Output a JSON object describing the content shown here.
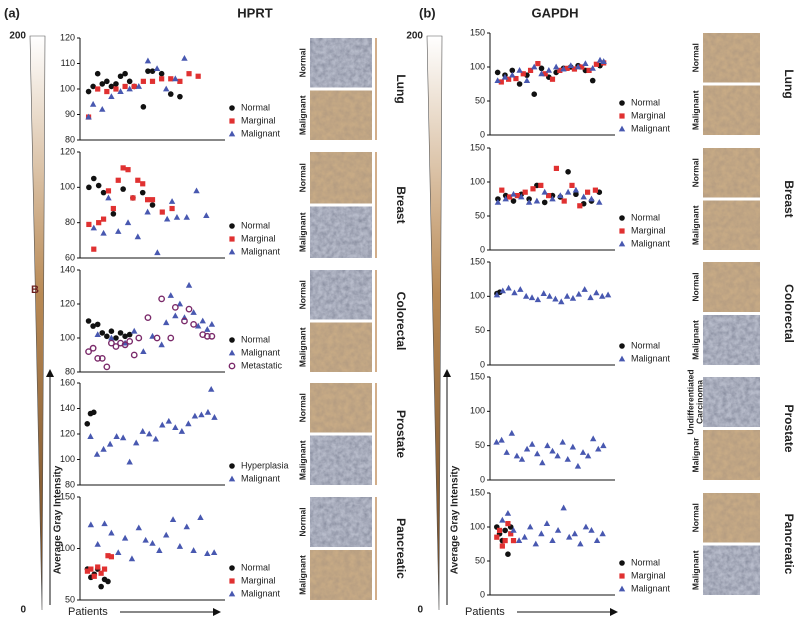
{
  "panels": [
    {
      "label": "(a)",
      "title": "HPRT",
      "scale_ticks": [
        0,
        200
      ],
      "y_label": "Average Gray Intensity",
      "x_label": "Patients",
      "mark": "B"
    },
    {
      "label": "(b)",
      "title": "GAPDH",
      "scale_ticks": [
        0,
        200
      ],
      "y_label": "Average Gray Intensity",
      "x_label": "Patients"
    }
  ],
  "chart_data": [
    {
      "type": "scatter",
      "tissue": "Lung",
      "image_labels": [
        "Normal",
        "Malignant"
      ],
      "xlim": [
        0,
        30
      ],
      "ylim": [
        80,
        120
      ],
      "yticks": [
        80,
        90,
        100,
        110,
        120
      ],
      "legend": true,
      "series": [
        {
          "name": "Normal",
          "color": "#111111",
          "marker": "circle",
          "x": [
            1,
            2,
            3,
            4,
            5,
            6,
            7,
            8,
            9,
            10,
            11,
            13,
            14,
            15,
            17,
            19,
            21
          ],
          "values": [
            99,
            101,
            106,
            102,
            103,
            101,
            102,
            105,
            106,
            103,
            101,
            93,
            107,
            107,
            106,
            98,
            97
          ]
        },
        {
          "name": "Marginal",
          "color": "#e03131",
          "marker": "square",
          "x": [
            1,
            3,
            5,
            7,
            9,
            11,
            13,
            15,
            17,
            19,
            21,
            23,
            25
          ],
          "values": [
            89,
            100,
            99,
            100,
            101,
            101,
            103,
            103,
            104,
            104,
            103,
            106,
            105
          ]
        },
        {
          "name": "Malignant",
          "color": "#4858b0",
          "marker": "triangle",
          "x": [
            1,
            2,
            4,
            6,
            8,
            10,
            12,
            14,
            16,
            18,
            20,
            22
          ],
          "values": [
            89,
            94,
            92,
            97,
            99,
            100,
            101,
            111,
            108,
            100,
            104,
            112
          ]
        }
      ]
    },
    {
      "type": "scatter",
      "tissue": "Breast",
      "image_labels": [
        "Normal",
        "Malignant"
      ],
      "xlim": [
        0,
        28
      ],
      "ylim": [
        60,
        120
      ],
      "yticks": [
        60,
        80,
        100,
        120
      ],
      "legend": true,
      "series": [
        {
          "name": "Normal",
          "color": "#111111",
          "marker": "circle",
          "x": [
            1,
            2,
            3,
            4,
            6,
            8,
            10,
            12,
            14
          ],
          "values": [
            100,
            105,
            101,
            97,
            85,
            99,
            94,
            97,
            90
          ]
        },
        {
          "name": "Marginal",
          "color": "#e03131",
          "marker": "square",
          "x": [
            1,
            2,
            3,
            4,
            5,
            6,
            7,
            8,
            9,
            10,
            11,
            12,
            13,
            14,
            16,
            18
          ],
          "values": [
            79,
            65,
            80,
            82,
            98,
            88,
            104,
            111,
            110,
            94,
            104,
            102,
            93,
            93,
            86,
            88
          ]
        },
        {
          "name": "Malignant",
          "color": "#4858b0",
          "marker": "triangle",
          "x": [
            2,
            4,
            5,
            7,
            9,
            11,
            13,
            15,
            17,
            18,
            19,
            21,
            23,
            25
          ],
          "values": [
            77,
            74,
            94,
            75,
            80,
            72,
            86,
            63,
            82,
            92,
            83,
            83,
            98,
            84
          ]
        }
      ]
    },
    {
      "type": "scatter",
      "tissue": "Colorectal",
      "image_labels": [
        "Normal",
        "Malignant"
      ],
      "xlim": [
        0,
        30
      ],
      "ylim": [
        80,
        140
      ],
      "yticks": [
        80,
        100,
        120,
        140
      ],
      "legend": true,
      "series": [
        {
          "name": "Normal",
          "color": "#111111",
          "marker": "circle",
          "x": [
            1,
            2,
            3,
            4,
            5,
            6,
            7,
            8,
            9,
            10
          ],
          "values": [
            110,
            107,
            108,
            103,
            101,
            104,
            100,
            103,
            101,
            102
          ]
        },
        {
          "name": "Malignant",
          "color": "#4858b0",
          "marker": "triangle",
          "x": [
            3,
            6,
            9,
            11,
            13,
            15,
            17,
            18,
            19,
            20,
            21,
            22,
            23,
            24,
            25,
            26,
            27,
            28
          ],
          "values": [
            102,
            100,
            97,
            104,
            92,
            101,
            96,
            109,
            125,
            113,
            120,
            112,
            131,
            115,
            107,
            110,
            105,
            108
          ]
        },
        {
          "name": "Metastatic",
          "color": "#7a2a6a",
          "marker": "open-circle",
          "x": [
            1,
            2,
            3,
            4,
            5,
            6,
            7,
            8,
            9,
            10,
            11,
            12,
            14,
            16,
            17,
            19,
            20,
            22,
            23,
            24,
            26,
            27,
            28
          ],
          "values": [
            92,
            94,
            88,
            88,
            83,
            97,
            95,
            97,
            96,
            98,
            90,
            100,
            112,
            100,
            123,
            100,
            118,
            110,
            117,
            108,
            102,
            101,
            101
          ]
        }
      ]
    },
    {
      "type": "scatter",
      "tissue": "Prostate",
      "image_labels": [
        "Normal",
        "Malignant"
      ],
      "xlim": [
        0,
        42
      ],
      "ylim": [
        80,
        160
      ],
      "yticks": [
        80,
        100,
        120,
        140,
        160
      ],
      "legend": true,
      "series": [
        {
          "name": "Hyperplasia",
          "color": "#111111",
          "marker": "circle",
          "x": [
            1,
            2,
            3
          ],
          "values": [
            128,
            136,
            137
          ]
        },
        {
          "name": "Malignant",
          "color": "#4858b0",
          "marker": "triangle",
          "x": [
            2,
            4,
            6,
            8,
            10,
            12,
            14,
            16,
            18,
            20,
            22,
            24,
            26,
            28,
            30,
            32,
            34,
            36,
            38,
            39,
            40
          ],
          "values": [
            118,
            104,
            108,
            112,
            118,
            117,
            98,
            113,
            122,
            120,
            116,
            127,
            130,
            125,
            122,
            128,
            134,
            135,
            137,
            155,
            133
          ]
        }
      ]
    },
    {
      "type": "scatter",
      "tissue": "Pancreatic",
      "image_labels": [
        "Normal",
        "Malignant"
      ],
      "xlim": [
        0,
        40
      ],
      "ylim": [
        50,
        150
      ],
      "yticks": [
        50,
        100,
        150
      ],
      "legend": true,
      "series": [
        {
          "name": "Normal",
          "color": "#111111",
          "marker": "circle",
          "x": [
            1,
            2,
            3,
            4,
            5,
            6,
            7
          ],
          "values": [
            80,
            72,
            75,
            80,
            63,
            70,
            68
          ]
        },
        {
          "name": "Marginal",
          "color": "#e03131",
          "marker": "square",
          "x": [
            1,
            2,
            3,
            4,
            5,
            6,
            7,
            8
          ],
          "values": [
            78,
            80,
            73,
            82,
            76,
            80,
            93,
            92
          ]
        },
        {
          "name": "Malignant",
          "color": "#4858b0",
          "marker": "triangle",
          "x": [
            2,
            4,
            6,
            8,
            10,
            12,
            14,
            16,
            18,
            20,
            22,
            24,
            26,
            28,
            30,
            32,
            34,
            36,
            38
          ],
          "values": [
            123,
            104,
            124,
            115,
            96,
            110,
            90,
            120,
            108,
            105,
            98,
            113,
            128,
            102,
            121,
            98,
            130,
            95,
            96
          ]
        }
      ]
    },
    {
      "type": "scatter",
      "tissue": "Lung",
      "image_labels": [
        "Normal",
        "Malignant"
      ],
      "xlim": [
        0,
        32
      ],
      "ylim": [
        0,
        150
      ],
      "yticks": [
        0,
        50,
        100,
        150
      ],
      "legend": true,
      "series": [
        {
          "name": "Normal",
          "color": "#111111",
          "marker": "circle",
          "x": [
            1,
            3,
            5,
            7,
            9,
            11,
            13,
            15,
            17,
            19,
            21,
            23,
            25,
            27,
            29
          ],
          "values": [
            92,
            88,
            95,
            75,
            88,
            60,
            98,
            85,
            92,
            98,
            100,
            102,
            95,
            80,
            102
          ]
        },
        {
          "name": "Marginal",
          "color": "#e03131",
          "marker": "square",
          "x": [
            2,
            4,
            6,
            8,
            10,
            12,
            14,
            16,
            18,
            20,
            22,
            24,
            26,
            28,
            30
          ],
          "values": [
            78,
            82,
            83,
            90,
            95,
            105,
            90,
            82,
            95,
            98,
            97,
            100,
            95,
            104,
            106
          ]
        },
        {
          "name": "Malignant",
          "color": "#4858b0",
          "marker": "triangle",
          "x": [
            1,
            3,
            5,
            7,
            9,
            11,
            13,
            15,
            17,
            19,
            21,
            23,
            25,
            27,
            29,
            30
          ],
          "values": [
            80,
            85,
            88,
            95,
            80,
            100,
            90,
            95,
            100,
            97,
            102,
            100,
            105,
            98,
            110,
            108
          ]
        }
      ]
    },
    {
      "type": "scatter",
      "tissue": "Breast",
      "image_labels": [
        "Normal",
        "Malignant"
      ],
      "xlim": [
        0,
        30
      ],
      "ylim": [
        0,
        150
      ],
      "yticks": [
        0,
        50,
        100,
        150
      ],
      "legend": true,
      "series": [
        {
          "name": "Normal",
          "color": "#111111",
          "marker": "circle",
          "x": [
            1,
            3,
            5,
            7,
            9,
            11,
            13,
            15,
            17,
            19,
            21,
            23,
            25,
            27
          ],
          "values": [
            75,
            80,
            72,
            82,
            75,
            95,
            70,
            80,
            78,
            115,
            82,
            68,
            72,
            85
          ]
        },
        {
          "name": "Marginal",
          "color": "#e03131",
          "marker": "square",
          "x": [
            2,
            4,
            6,
            8,
            10,
            12,
            14,
            16,
            18,
            20,
            22,
            24,
            26
          ],
          "values": [
            88,
            78,
            80,
            85,
            90,
            95,
            80,
            120,
            72,
            95,
            65,
            85,
            88
          ]
        },
        {
          "name": "Malignant",
          "color": "#4858b0",
          "marker": "triangle",
          "x": [
            1,
            3,
            5,
            7,
            9,
            11,
            13,
            15,
            17,
            19,
            21,
            23,
            25,
            27
          ],
          "values": [
            70,
            75,
            82,
            78,
            70,
            72,
            85,
            75,
            80,
            85,
            88,
            78,
            75,
            70
          ]
        }
      ]
    },
    {
      "type": "scatter",
      "tissue": "Colorectal",
      "image_labels": [
        "Normal",
        "Malignant"
      ],
      "xlim": [
        0,
        40
      ],
      "ylim": [
        0,
        150
      ],
      "yticks": [
        0,
        50,
        100,
        150
      ],
      "legend": true,
      "series": [
        {
          "name": "Normal",
          "color": "#111111",
          "marker": "circle",
          "x": [
            1,
            2
          ],
          "values": [
            104,
            106
          ]
        },
        {
          "name": "Malignant",
          "color": "#4858b0",
          "marker": "triangle",
          "x": [
            1,
            3,
            5,
            7,
            9,
            11,
            13,
            15,
            17,
            19,
            21,
            23,
            25,
            27,
            29,
            31,
            33,
            35,
            37,
            39
          ],
          "values": [
            102,
            108,
            112,
            105,
            110,
            100,
            98,
            95,
            104,
            100,
            96,
            92,
            100,
            97,
            103,
            110,
            98,
            105,
            100,
            102
          ]
        }
      ]
    },
    {
      "type": "scatter",
      "tissue": "Prostate",
      "image_labels": [
        "Undifferentiated Carcinoma",
        "Malignar"
      ],
      "xlim": [
        0,
        46
      ],
      "ylim": [
        0,
        150
      ],
      "yticks": [
        0,
        50,
        100,
        150
      ],
      "legend": false,
      "series": [
        {
          "name": "Malignant",
          "color": "#4858b0",
          "marker": "triangle",
          "x": [
            1,
            3,
            5,
            7,
            9,
            11,
            13,
            15,
            17,
            19,
            21,
            23,
            25,
            27,
            29,
            31,
            33,
            35,
            37,
            39,
            41,
            43
          ],
          "values": [
            55,
            58,
            40,
            68,
            35,
            30,
            45,
            52,
            38,
            25,
            50,
            42,
            35,
            55,
            30,
            48,
            20,
            40,
            35,
            60,
            45,
            50
          ]
        }
      ]
    },
    {
      "type": "scatter",
      "tissue": "Pancreatic",
      "image_labels": [
        "Normal",
        "Malignant"
      ],
      "xlim": [
        0,
        42
      ],
      "ylim": [
        0,
        150
      ],
      "yticks": [
        0,
        50,
        100,
        150
      ],
      "legend": true,
      "series": [
        {
          "name": "Normal",
          "color": "#111111",
          "marker": "circle",
          "x": [
            1,
            2,
            3,
            4,
            5,
            6
          ],
          "values": [
            100,
            90,
            80,
            95,
            60,
            100
          ]
        },
        {
          "name": "Marginal",
          "color": "#e03131",
          "marker": "square",
          "x": [
            1,
            2,
            3,
            4,
            5,
            6,
            7
          ],
          "values": [
            85,
            95,
            72,
            80,
            105,
            90,
            80
          ]
        },
        {
          "name": "Malignant",
          "color": "#4858b0",
          "marker": "triangle",
          "x": [
            3,
            5,
            7,
            9,
            11,
            13,
            15,
            17,
            19,
            21,
            23,
            25,
            27,
            29,
            31,
            33,
            35,
            37,
            39
          ],
          "values": [
            110,
            120,
            95,
            80,
            85,
            100,
            75,
            90,
            105,
            80,
            95,
            128,
            85,
            90,
            75,
            100,
            95,
            80,
            90
          ]
        }
      ]
    }
  ]
}
